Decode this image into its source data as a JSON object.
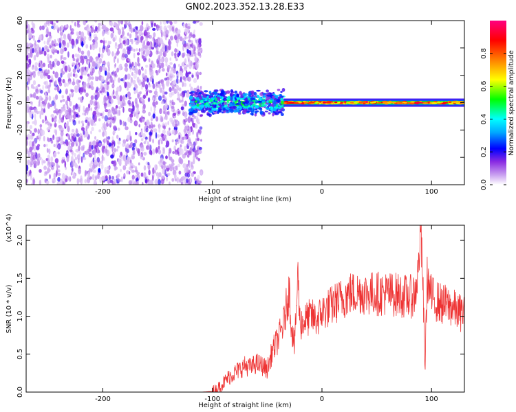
{
  "chart_data": [
    {
      "type": "heatmap",
      "title": "GN02.2023.352.13.28.E33",
      "xlabel": "Height of straight line (km)",
      "ylabel": "Frequency (Hz)",
      "xlim": [
        -270,
        130
      ],
      "ylim": [
        -60,
        60
      ],
      "xticks": [
        -200,
        -100,
        0,
        100
      ],
      "xtick_labels": [
        "-200",
        "-100",
        "0",
        "100"
      ],
      "yticks": [
        -60,
        -40,
        -20,
        0,
        20,
        40,
        60
      ],
      "ytick_labels": [
        "-60",
        "-40",
        "-20",
        "0",
        "20",
        "40",
        "60"
      ],
      "colorbar": {
        "label": "Normalized spectral amplitude",
        "range": [
          0,
          1
        ],
        "ticks": [
          0.0,
          0.2,
          0.4,
          0.6,
          0.8
        ],
        "tick_labels": [
          "0.0",
          "0.2",
          "0.4",
          "0.6",
          "0.8"
        ],
        "colormap": [
          "#ffffff",
          "#8a2be2",
          "#0000ff",
          "#00ffff",
          "#00ff00",
          "#ffff00",
          "#ff8000",
          "#ff0000",
          "#ff0080"
        ]
      },
      "regions": [
        {
          "x_range": [
            -270,
            -110
          ],
          "freq_range": [
            -60,
            60
          ],
          "amplitude": "low broadband noise (0.05-0.3)"
        },
        {
          "x_range": [
            -120,
            -35
          ],
          "freq_range": [
            -10,
            10
          ],
          "amplitude": "moderate signal (0.2-0.6)"
        },
        {
          "x_range": [
            -35,
            130
          ],
          "freq_range": [
            -3,
            3
          ],
          "amplitude": "strong narrow band at 0 Hz (0.6-1.0)"
        }
      ],
      "grid": false
    },
    {
      "type": "line",
      "xlabel": "Height of straight line (km)",
      "ylabel": "SNR (10 * v/v)",
      "y_multiplier": "(x10^4)",
      "xlim": [
        -270,
        130
      ],
      "ylim": [
        0,
        2.2
      ],
      "xticks": [
        -200,
        -100,
        0,
        100
      ],
      "xtick_labels": [
        "-200",
        "-100",
        "0",
        "100"
      ],
      "yticks": [
        0.0,
        0.5,
        1.0,
        1.5,
        2.0
      ],
      "ytick_labels": [
        "0.0",
        "0.5",
        "1.0",
        "1.5",
        "2.0"
      ],
      "line_color": "#ee3333",
      "series": [
        {
          "x": [
            -270,
            -250,
            -230,
            -200,
            -170,
            -140,
            -110,
            -100,
            -95,
            -90,
            -85,
            -80,
            -75,
            -70,
            -65,
            -60,
            -55,
            -50,
            -45,
            -40,
            -35,
            -30,
            -28,
            -25,
            -22,
            -20,
            -15,
            -10,
            -5,
            0,
            5,
            10,
            15,
            20,
            25,
            30,
            35,
            40,
            50,
            60,
            70,
            80,
            85,
            88,
            90,
            92,
            94,
            96,
            100,
            105,
            110,
            115,
            120,
            125,
            130
          ],
          "y": [
            0.0,
            0.0,
            0.0,
            0.0,
            0.0,
            0.0,
            0.0,
            0.01,
            0.05,
            0.12,
            0.2,
            0.25,
            0.3,
            0.35,
            0.32,
            0.38,
            0.35,
            0.3,
            0.55,
            0.7,
            0.9,
            1.35,
            0.9,
            0.6,
            1.55,
            0.9,
            0.95,
            1.0,
            0.95,
            1.05,
            1.1,
            1.15,
            1.2,
            1.25,
            1.3,
            1.3,
            1.32,
            1.3,
            1.3,
            1.3,
            1.28,
            1.25,
            1.3,
            1.6,
            2.15,
            1.5,
            0.3,
            1.5,
            1.25,
            1.2,
            1.15,
            1.15,
            1.1,
            1.05,
            1.05
          ]
        }
      ],
      "grid": false
    }
  ]
}
